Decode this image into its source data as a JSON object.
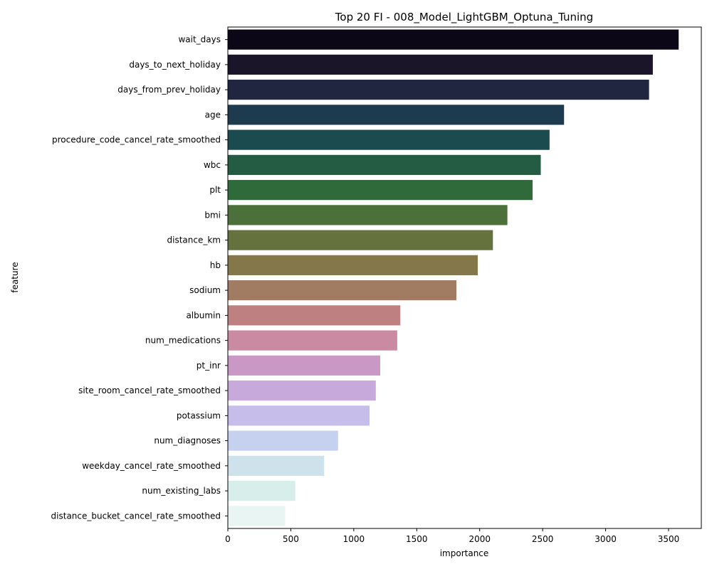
{
  "chart_data": {
    "type": "bar",
    "orientation": "horizontal",
    "title": "Top 20 FI - 008_Model_LightGBM_Optuna_Tuning",
    "xlabel": "importance",
    "ylabel": "feature",
    "xlim": [
      0,
      3760
    ],
    "xticks": [
      0,
      500,
      1000,
      1500,
      2000,
      2500,
      3000,
      3500
    ],
    "grid": false,
    "legend": "none",
    "categories": [
      "wait_days",
      "days_to_next_holiday",
      "days_from_prev_holiday",
      "age",
      "procedure_code_cancel_rate_smoothed",
      "wbc",
      "plt",
      "bmi",
      "distance_km",
      "hb",
      "sodium",
      "albumin",
      "num_medications",
      "pt_inr",
      "site_room_cancel_rate_smoothed",
      "potassium",
      "num_diagnoses",
      "weekday_cancel_rate_smoothed",
      "num_existing_labs",
      "distance_bucket_cancel_rate_smoothed"
    ],
    "values": [
      3580,
      3375,
      3345,
      2670,
      2555,
      2485,
      2420,
      2220,
      2105,
      1985,
      1815,
      1370,
      1345,
      1210,
      1175,
      1125,
      875,
      765,
      535,
      455
    ],
    "colors": [
      "#0c0717",
      "#1b1529",
      "#212640",
      "#1e3a4e",
      "#1b4b4e",
      "#235c43",
      "#2f6a3a",
      "#4c703a",
      "#66723d",
      "#84774a",
      "#a27c62",
      "#bf8081",
      "#c98aa2",
      "#ca98c4",
      "#c8a9db",
      "#c6bdea",
      "#c6d1ef",
      "#cee2ec",
      "#d8eeea",
      "#e9f5f2"
    ]
  }
}
